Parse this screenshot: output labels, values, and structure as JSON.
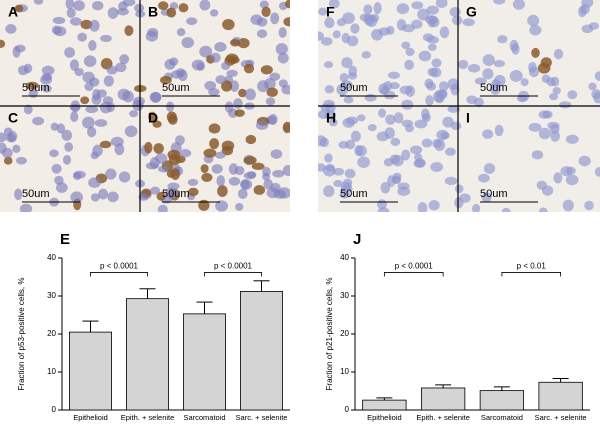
{
  "panels": [
    {
      "label": "A",
      "scale": "50um"
    },
    {
      "label": "B",
      "scale": "50um"
    },
    {
      "label": "C",
      "scale": "50um"
    },
    {
      "label": "D",
      "scale": "50um"
    },
    {
      "label": "F",
      "scale": "50um"
    },
    {
      "label": "G",
      "scale": "50um"
    },
    {
      "label": "H",
      "scale": "50um"
    },
    {
      "label": "I",
      "scale": "50um"
    }
  ],
  "chart_data": [
    {
      "type": "bar",
      "title": "E",
      "y_label": "Fraction of p53-positive cells, %",
      "categories": [
        "Epithelioid",
        "Epith. + selenite",
        "Sarcomatoid",
        "Sarc. + selenite"
      ],
      "values": [
        20.5,
        29.3,
        25.3,
        31.2
      ],
      "errors": [
        2.9,
        2.6,
        3.1,
        2.8
      ],
      "color": "#d4d4d4",
      "ylim": [
        0,
        40
      ],
      "yticks": [
        0,
        10,
        20,
        30,
        40
      ],
      "annotations": [
        {
          "text": "p < 0.0001",
          "y": 36.2
        },
        {
          "text": "p < 0.0001",
          "y": 36.2
        }
      ]
    },
    {
      "type": "bar",
      "title": "J",
      "y_label": "Fraction of p21-positive cells, %",
      "categories": [
        "Epithelioid",
        "Epith. + selenite",
        "Sarcomatoid",
        "Sarc. + selenite"
      ],
      "values": [
        2.6,
        5.8,
        5.1,
        7.3
      ],
      "errors": [
        0.6,
        0.8,
        1.0,
        1.0
      ],
      "color": "#d4d4d4",
      "ylim": [
        0,
        40
      ],
      "yticks": [
        0,
        10,
        20,
        30,
        40
      ],
      "annotations": [
        {
          "text": "p < 0.0001",
          "y": 36.2
        },
        {
          "text": "p < 0.01",
          "y": 36.2
        }
      ]
    }
  ]
}
